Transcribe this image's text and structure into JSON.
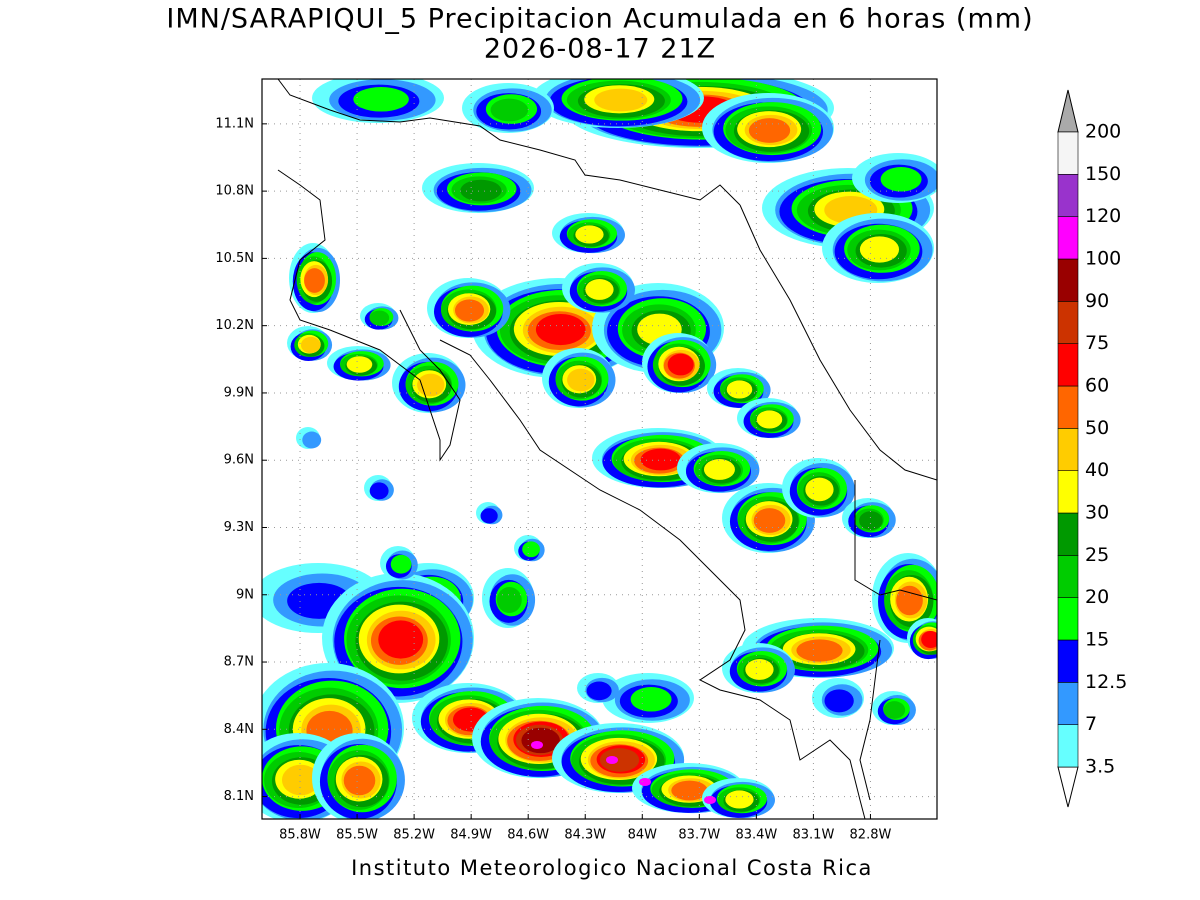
{
  "title": "IMN/SARAPIQUI_5 Precipitacion Acumulada en 6 horas (mm)",
  "subtitle": "2026-08-17 21Z",
  "footer": "Instituto Meteorologico Nacional Costa Rica",
  "map": {
    "lat_range": [
      8.0,
      11.3
    ],
    "lon_range": [
      -86.0,
      -82.45
    ],
    "grid": true,
    "lat_ticks": [
      {
        "value": 11.1,
        "label": "11.1N"
      },
      {
        "value": 10.8,
        "label": "10.8N"
      },
      {
        "value": 10.5,
        "label": "10.5N"
      },
      {
        "value": 10.2,
        "label": "10.2N"
      },
      {
        "value": 9.9,
        "label": "9.9N"
      },
      {
        "value": 9.6,
        "label": "9.6N"
      },
      {
        "value": 9.3,
        "label": "9.3N"
      },
      {
        "value": 9,
        "label": "9N"
      },
      {
        "value": 8.7,
        "label": "8.7N"
      },
      {
        "value": 8.4,
        "label": "8.4N"
      },
      {
        "value": 8.1,
        "label": "8.1N"
      }
    ],
    "lon_ticks": [
      {
        "value": -85.8,
        "label": "85.8W"
      },
      {
        "value": -85.5,
        "label": "85.5W"
      },
      {
        "value": -85.2,
        "label": "85.2W"
      },
      {
        "value": -84.9,
        "label": "84.9W"
      },
      {
        "value": -84.6,
        "label": "84.6W"
      },
      {
        "value": -84.3,
        "label": "84.3W"
      },
      {
        "value": -84,
        "label": "84W"
      },
      {
        "value": -83.7,
        "label": "83.7W"
      },
      {
        "value": -83.4,
        "label": "83.4W"
      },
      {
        "value": -83.1,
        "label": "83.1W"
      },
      {
        "value": -82.8,
        "label": "82.8W"
      }
    ]
  },
  "colorbar": {
    "levels": [
      3.5,
      7,
      12.5,
      15,
      20,
      25,
      30,
      40,
      50,
      60,
      75,
      90,
      100,
      120,
      150,
      200
    ],
    "colors": [
      "#66ffff",
      "#3399ff",
      "#0000ff",
      "#00ff00",
      "#00cc00",
      "#009900",
      "#ffff00",
      "#ffcc00",
      "#ff6600",
      "#ff0000",
      "#cc3300",
      "#990000",
      "#ff00ff",
      "#9933cc",
      "#f5f5f5"
    ],
    "over_color": "#aaaaaa",
    "under_color": "#ffffff"
  }
}
